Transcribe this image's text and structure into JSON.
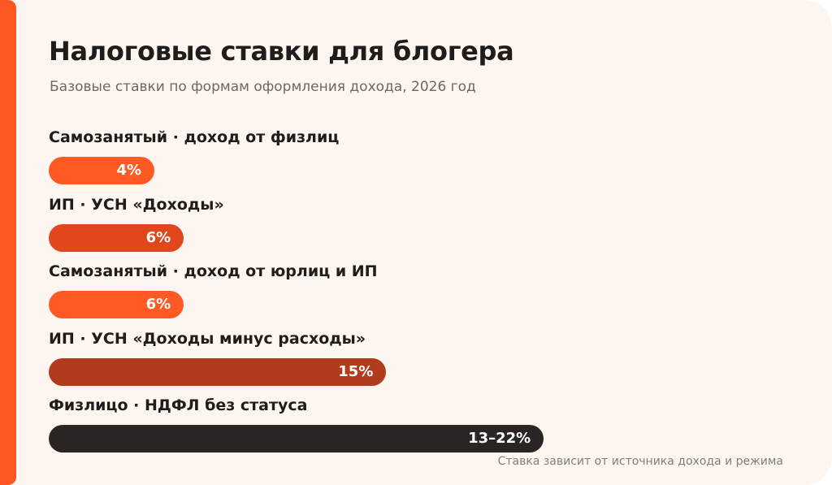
{
  "colors": {
    "accent": "#ff5722",
    "orange": "#ff5a24",
    "red_orange": "#e1461d",
    "brick": "#b13b1c",
    "dark": "#2a2524"
  },
  "chart_data": {
    "type": "bar",
    "orientation": "horizontal",
    "title": "Налоговые ставки для блогера",
    "subtitle": "Базовые ставки по формам оформления дохода, 2026 год",
    "xlabel": "",
    "ylabel": "",
    "xlim": [
      0,
      26
    ],
    "grid": false,
    "categories": [
      "Самозанятый · доход от физлиц",
      "ИП · УСН «Доходы»",
      "Самозанятый · доход от юрлиц и ИП",
      "ИП · УСН «Доходы минус расходы»",
      "Физлицо · НДФЛ без статуса"
    ],
    "values": [
      4,
      6,
      6,
      15,
      22
    ],
    "data_labels": [
      "4%",
      "6%",
      "6%",
      "15%",
      "13–22%"
    ],
    "bar_colors": [
      "#ff5a24",
      "#e1461d",
      "#ff5a24",
      "#b13b1c",
      "#2a2524"
    ],
    "annotations": [
      "Ставка зависит от источника дохода и режима"
    ]
  }
}
